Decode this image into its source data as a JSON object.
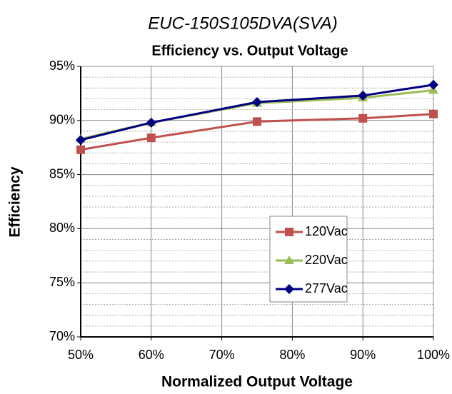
{
  "chart_data": {
    "type": "line",
    "title": "EUC-150S105DVA(SVA)",
    "subtitle": "Efficiency vs. Output Voltage",
    "x_label": "Normalized Output Voltage",
    "y_label": "Efficiency",
    "x": [
      50,
      60,
      75,
      90,
      100
    ],
    "series": [
      {
        "name": "120Vac",
        "color": "#c0504d",
        "marker": "square",
        "values": [
          87.3,
          88.4,
          89.9,
          90.2,
          90.6
        ]
      },
      {
        "name": "220Vac",
        "color": "#9bbb59",
        "marker": "triangle",
        "values": [
          88.3,
          89.8,
          91.6,
          92.1,
          92.8
        ]
      },
      {
        "name": "277Vac",
        "color": "#000080",
        "marker": "diamond",
        "values": [
          88.2,
          89.8,
          91.7,
          92.3,
          93.3
        ]
      }
    ],
    "xlim": [
      50,
      100
    ],
    "xticks": [
      {
        "value": 50,
        "label": "50%"
      },
      {
        "value": 60,
        "label": "60%"
      },
      {
        "value": 70,
        "label": "70%"
      },
      {
        "value": 80,
        "label": "80%"
      },
      {
        "value": 90,
        "label": "90%"
      },
      {
        "value": 100,
        "label": "100%"
      }
    ],
    "ylim": [
      70,
      95
    ],
    "yticks": [
      {
        "value": 70,
        "label": "70%"
      },
      {
        "value": 75,
        "label": "75%"
      },
      {
        "value": 80,
        "label": "80%"
      },
      {
        "value": 85,
        "label": "85%"
      },
      {
        "value": 90,
        "label": "90%"
      },
      {
        "value": 95,
        "label": "95%"
      }
    ],
    "yminorticks": [
      71,
      72,
      73,
      74,
      76,
      77,
      78,
      79,
      81,
      82,
      83,
      84,
      86,
      87,
      88,
      89,
      91,
      92,
      93,
      94
    ],
    "grid": true,
    "legend": "center-right"
  }
}
